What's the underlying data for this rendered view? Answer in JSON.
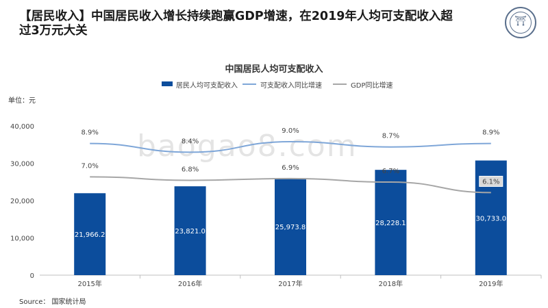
{
  "slide": {
    "title": "【居民收入】中国居民收入增长持续跑赢GDP增速，在2019年人均可支配收入超过3万元大关",
    "unit_label": "单位：元",
    "source": "Source： 国家统计局",
    "watermark": "baogao8.com",
    "logo_icon": "university-seal-icon"
  },
  "chart_data": {
    "type": "bar",
    "title": "中国居民人均可支配收入",
    "categories": [
      "2015年",
      "2016年",
      "2017年",
      "2018年",
      "2019年"
    ],
    "ylim": [
      0,
      40000
    ],
    "yticks": [
      "0",
      "10,000",
      "20,000",
      "30,000",
      "40,000"
    ],
    "ytick_values": [
      0,
      10000,
      20000,
      30000,
      40000
    ],
    "grid": false,
    "legend_position": "top",
    "series": [
      {
        "name": "居民人均可支配收入",
        "kind": "bar",
        "color": "#0c4d9c",
        "values": [
          21966.2,
          23821.0,
          25973.8,
          28228.1,
          30733.0
        ],
        "labels": [
          "21,966.2",
          "23,821.0",
          "25,973.8",
          "28,228.1",
          "30,733.0"
        ]
      },
      {
        "name": "可支配收入同比增速",
        "kind": "line",
        "color": "#7ea6d8",
        "values": [
          8.9,
          8.4,
          9.0,
          8.7,
          8.9
        ],
        "labels": [
          "8.9%",
          "8.4%",
          "9.0%",
          "8.7%",
          "8.9%"
        ]
      },
      {
        "name": "GDP同比增速",
        "kind": "line",
        "color": "#a6a6a6",
        "values": [
          7.0,
          6.8,
          6.9,
          6.7,
          6.1
        ],
        "labels": [
          "7.0%",
          "6.8%",
          "6.9%",
          "6.7%",
          "6.1%"
        ]
      }
    ]
  }
}
